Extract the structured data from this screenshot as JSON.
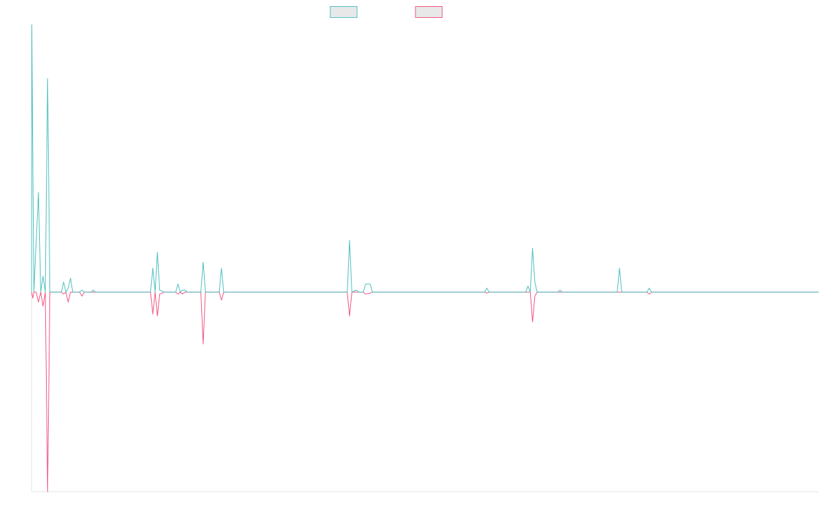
{
  "chart_data": {
    "type": "line",
    "title": "",
    "xlabel": "",
    "ylabel": "",
    "grid": false,
    "legend_position": "top-center",
    "x_range": [
      0,
      344
    ],
    "ylim": [
      -10,
      13.4
    ],
    "colors": {
      "series_a": "#4bbfbf",
      "series_b": "#f0547e"
    },
    "legend": [
      {
        "name": "",
        "color": "#4bbfbf"
      },
      {
        "name": "",
        "color": "#f0547e"
      }
    ],
    "series": [
      {
        "name": "",
        "color": "#4bbfbf",
        "points": [
          [
            0,
            0
          ],
          [
            0.1,
            13.4
          ],
          [
            1,
            0
          ],
          [
            3,
            5
          ],
          [
            4,
            0
          ],
          [
            5,
            0.8
          ],
          [
            6,
            0
          ],
          [
            7,
            10.7
          ],
          [
            8,
            0
          ],
          [
            13,
            0
          ],
          [
            14,
            0.5
          ],
          [
            15,
            0
          ],
          [
            16,
            0.2
          ],
          [
            17,
            0.7
          ],
          [
            18,
            0
          ],
          [
            21,
            0
          ],
          [
            22,
            0.1
          ],
          [
            23,
            0
          ],
          [
            26,
            0
          ],
          [
            27,
            0.1
          ],
          [
            28,
            0
          ],
          [
            52,
            0
          ],
          [
            53,
            1.2
          ],
          [
            54,
            0
          ],
          [
            55,
            2
          ],
          [
            56,
            0.1
          ],
          [
            58,
            0
          ],
          [
            63,
            0
          ],
          [
            64,
            0.4
          ],
          [
            65,
            0
          ],
          [
            66,
            0.1
          ],
          [
            67,
            0.1
          ],
          [
            68,
            0
          ],
          [
            74,
            0
          ],
          [
            75,
            1.5
          ],
          [
            76,
            0
          ],
          [
            82,
            0
          ],
          [
            83,
            1.2
          ],
          [
            84,
            0
          ],
          [
            138,
            0
          ],
          [
            139,
            2.6
          ],
          [
            140,
            0
          ],
          [
            142,
            0.1
          ],
          [
            143,
            0
          ],
          [
            145,
            0
          ],
          [
            146,
            0.4
          ],
          [
            148,
            0.4
          ],
          [
            149,
            0
          ],
          [
            198,
            0
          ],
          [
            199,
            0.2
          ],
          [
            200,
            0
          ],
          [
            216,
            0
          ],
          [
            217,
            0.3
          ],
          [
            218,
            0
          ],
          [
            219,
            2.2
          ],
          [
            220,
            0.5
          ],
          [
            221,
            0
          ],
          [
            230,
            0
          ],
          [
            231,
            0.1
          ],
          [
            232,
            0
          ],
          [
            256,
            0
          ],
          [
            257,
            1.2
          ],
          [
            258,
            0
          ],
          [
            269,
            0
          ],
          [
            270,
            0.2
          ],
          [
            271,
            0
          ],
          [
            344,
            0
          ]
        ]
      },
      {
        "name": "",
        "color": "#f0547e",
        "points": [
          [
            0,
            0
          ],
          [
            0.5,
            -0.3
          ],
          [
            1,
            0
          ],
          [
            2,
            0
          ],
          [
            3,
            -0.5
          ],
          [
            4,
            0
          ],
          [
            5,
            -0.7
          ],
          [
            6,
            0
          ],
          [
            7,
            -10
          ],
          [
            8,
            0
          ],
          [
            13,
            0
          ],
          [
            14,
            -0.1
          ],
          [
            15,
            0
          ],
          [
            16,
            -0.5
          ],
          [
            17,
            0
          ],
          [
            21,
            0
          ],
          [
            22,
            -0.2
          ],
          [
            23,
            0
          ],
          [
            52,
            0
          ],
          [
            53,
            -1.1
          ],
          [
            54,
            0
          ],
          [
            55,
            -1.2
          ],
          [
            56,
            -0.1
          ],
          [
            58,
            0
          ],
          [
            63,
            0
          ],
          [
            64,
            -0.1
          ],
          [
            65,
            0
          ],
          [
            66,
            -0.1
          ],
          [
            67,
            0
          ],
          [
            74,
            0
          ],
          [
            75,
            -2.6
          ],
          [
            76,
            0
          ],
          [
            82,
            0
          ],
          [
            83,
            -0.4
          ],
          [
            84,
            0
          ],
          [
            138,
            0
          ],
          [
            139,
            -1.2
          ],
          [
            140,
            0
          ],
          [
            145,
            0
          ],
          [
            146,
            -0.1
          ],
          [
            148,
            -0.05
          ],
          [
            149,
            0
          ],
          [
            198,
            0
          ],
          [
            199,
            -0.05
          ],
          [
            200,
            0
          ],
          [
            218,
            0
          ],
          [
            219,
            -1.5
          ],
          [
            220,
            -0.2
          ],
          [
            221,
            0
          ],
          [
            269,
            0
          ],
          [
            270,
            -0.1
          ],
          [
            271,
            0
          ],
          [
            344,
            0
          ]
        ]
      }
    ]
  }
}
